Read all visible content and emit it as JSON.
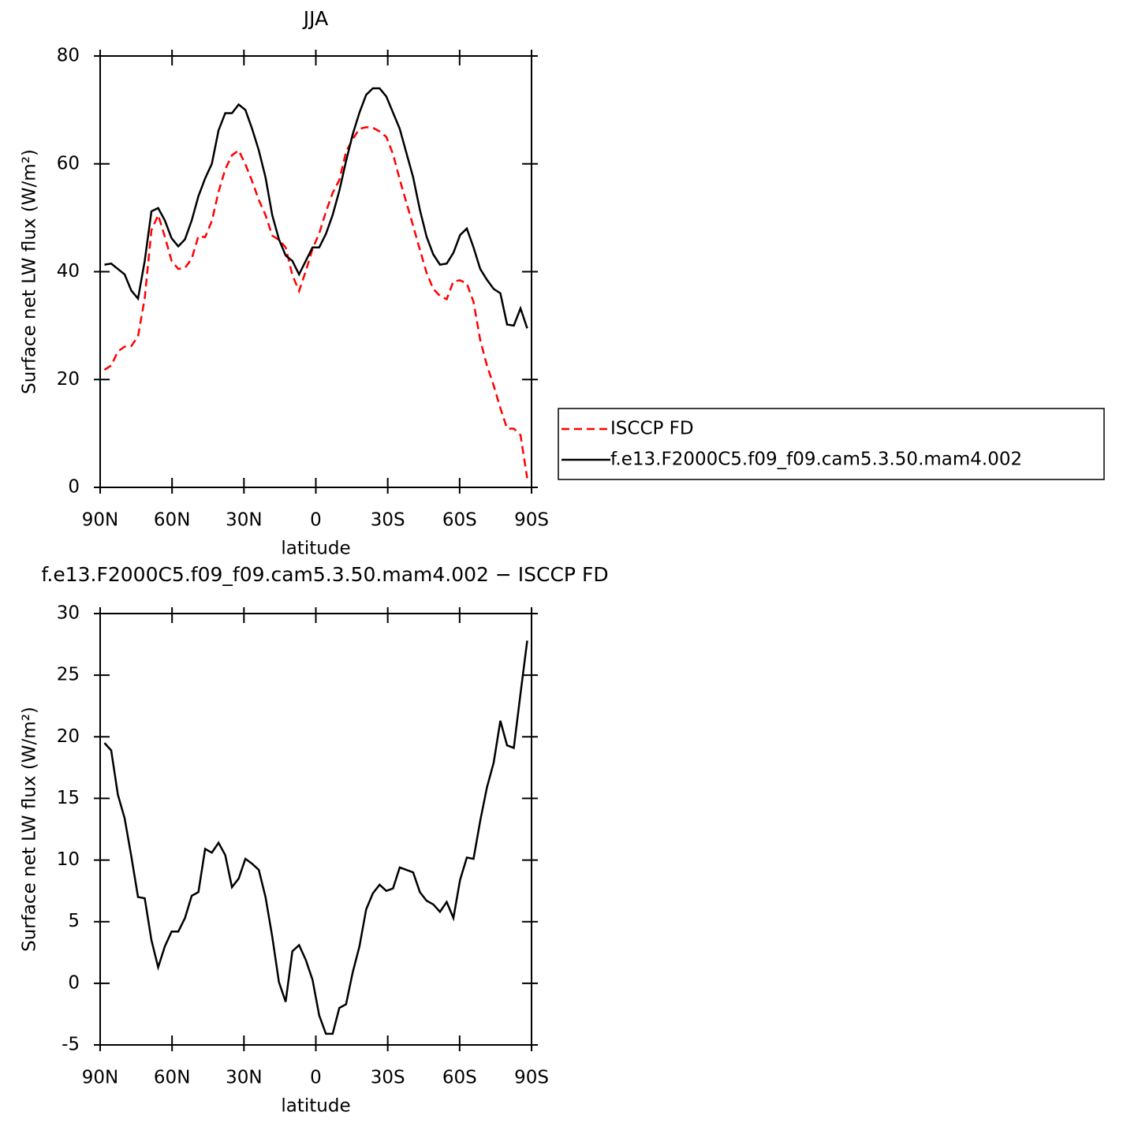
{
  "chart_data": [
    {
      "type": "line",
      "title": "JJA",
      "x_label": "latitude",
      "y_label": "Surface net LW flux (W/m²)",
      "x": [
        88.2,
        85.4,
        82.6,
        79.8,
        77.0,
        74.2,
        71.4,
        68.6,
        65.8,
        63.0,
        60.2,
        57.4,
        54.6,
        51.8,
        49.0,
        46.2,
        43.4,
        40.6,
        37.8,
        35.0,
        32.2,
        29.4,
        26.6,
        23.8,
        21.0,
        18.2,
        15.4,
        12.6,
        9.8,
        7.0,
        4.2,
        1.4,
        -1.4,
        -4.2,
        -7.0,
        -9.8,
        -12.6,
        -15.4,
        -18.2,
        -21.0,
        -23.8,
        -26.6,
        -29.4,
        -32.2,
        -35.0,
        -37.8,
        -40.6,
        -43.4,
        -46.2,
        -49.0,
        -51.8,
        -54.6,
        -57.4,
        -60.2,
        -63.0,
        -65.8,
        -68.6,
        -71.4,
        -74.2,
        -77.0,
        -79.8,
        -82.6,
        -85.4,
        -88.2
      ],
      "series": [
        {
          "name": "ISCCP FD",
          "color": "#ff0000",
          "linestyle": "dashed",
          "values": [
            21.8,
            22.6,
            25.2,
            26.1,
            26.2,
            28.0,
            35.1,
            47.7,
            50.5,
            46.5,
            42.0,
            40.5,
            40.7,
            42.4,
            46.6,
            46.4,
            49.4,
            54.8,
            59.0,
            61.6,
            62.5,
            59.9,
            56.8,
            53.3,
            50.5,
            46.7,
            45.9,
            44.5,
            39.4,
            36.4,
            40.1,
            44.2,
            47.1,
            51.1,
            54.6,
            57.0,
            62.2,
            64.6,
            66.5,
            66.8,
            66.7,
            66.0,
            65.0,
            61.8,
            57.1,
            52.8,
            48.5,
            44.1,
            39.8,
            36.8,
            35.5,
            34.9,
            38.2,
            38.4,
            37.8,
            34.4,
            27.3,
            22.6,
            18.9,
            14.7,
            10.9,
            10.9,
            9.7,
            1.7
          ]
        },
        {
          "name": "f.e13.F2000C5.f09_f09.cam5.3.50.mam4.002",
          "color": "#000000",
          "linestyle": "solid",
          "values": [
            41.3,
            41.5,
            40.5,
            39.5,
            36.5,
            35.0,
            42.0,
            51.2,
            51.8,
            49.5,
            46.2,
            44.7,
            46.0,
            49.5,
            54.0,
            57.3,
            60.0,
            66.2,
            69.4,
            69.4,
            71.0,
            70.0,
            66.5,
            62.5,
            57.5,
            50.5,
            46.0,
            43.0,
            42.0,
            39.5,
            42.0,
            44.5,
            44.5,
            47.0,
            50.5,
            55.0,
            60.5,
            65.5,
            69.5,
            72.8,
            74.0,
            74.0,
            72.5,
            69.5,
            66.5,
            62.0,
            57.5,
            51.5,
            46.5,
            43.2,
            41.3,
            41.5,
            43.5,
            46.8,
            48.0,
            44.5,
            40.5,
            38.5,
            36.8,
            36.0,
            30.2,
            30.0,
            33.2,
            29.5
          ]
        }
      ],
      "xlim": [
        90,
        -90
      ],
      "xticks": [
        {
          "value": 90,
          "label": "90N"
        },
        {
          "value": 60,
          "label": "60N"
        },
        {
          "value": 30,
          "label": "30N"
        },
        0,
        {
          "value": -30,
          "label": "30S"
        },
        {
          "value": -60,
          "label": "60S"
        },
        {
          "value": -90,
          "label": "90S"
        }
      ],
      "ylim": [
        0,
        80
      ],
      "yticks": [
        0,
        20,
        40,
        60,
        80
      ],
      "legend": "right"
    },
    {
      "type": "line",
      "title": "f.e13.F2000C5.f09_f09.cam5.3.50.mam4.002 − ISCCP FD",
      "x_label": "latitude",
      "y_label": "Surface net LW flux (W/m²)",
      "x": [
        88.2,
        85.4,
        82.6,
        79.8,
        77.0,
        74.2,
        71.4,
        68.6,
        65.8,
        63.0,
        60.2,
        57.4,
        54.6,
        51.8,
        49.0,
        46.2,
        43.4,
        40.6,
        37.8,
        35.0,
        32.2,
        29.4,
        26.6,
        23.8,
        21.0,
        18.2,
        15.4,
        12.6,
        9.8,
        7.0,
        4.2,
        1.4,
        -1.4,
        -4.2,
        -7.0,
        -9.8,
        -12.6,
        -15.4,
        -18.2,
        -21.0,
        -23.8,
        -26.6,
        -29.4,
        -32.2,
        -35.0,
        -37.8,
        -40.6,
        -43.4,
        -46.2,
        -49.0,
        -51.8,
        -54.6,
        -57.4,
        -60.2,
        -63.0,
        -65.8,
        -68.6,
        -71.4,
        -74.2,
        -77.0,
        -79.8,
        -82.6,
        -85.4,
        -88.2
      ],
      "series": [
        {
          "color": "#000000",
          "linestyle": "solid",
          "values": [
            19.5,
            18.9,
            15.3,
            13.4,
            10.3,
            7.0,
            6.9,
            3.5,
            1.3,
            3.0,
            4.2,
            4.2,
            5.3,
            7.1,
            7.4,
            10.9,
            10.6,
            11.4,
            10.4,
            7.8,
            8.5,
            10.1,
            9.7,
            9.2,
            7.0,
            3.8,
            0.1,
            -1.5,
            2.6,
            3.1,
            1.9,
            0.3,
            -2.6,
            -4.1,
            -4.1,
            -2.0,
            -1.7,
            0.9,
            3.0,
            6.0,
            7.3,
            8.0,
            7.5,
            7.7,
            9.4,
            9.2,
            9.0,
            7.4,
            6.7,
            6.4,
            5.8,
            6.6,
            5.3,
            8.4,
            10.2,
            10.1,
            13.2,
            15.9,
            17.9,
            21.3,
            19.3,
            19.1,
            23.5,
            27.8
          ]
        }
      ],
      "xlim": [
        90,
        -90
      ],
      "xticks": [
        {
          "value": 90,
          "label": "90N"
        },
        {
          "value": 60,
          "label": "60N"
        },
        {
          "value": 30,
          "label": "30N"
        },
        0,
        {
          "value": -30,
          "label": "30S"
        },
        {
          "value": -60,
          "label": "60S"
        },
        {
          "value": -90,
          "label": "90S"
        }
      ],
      "ylim": [
        -5,
        30
      ],
      "yticks": [
        -5,
        0,
        5,
        10,
        15,
        20,
        25,
        30
      ]
    }
  ]
}
